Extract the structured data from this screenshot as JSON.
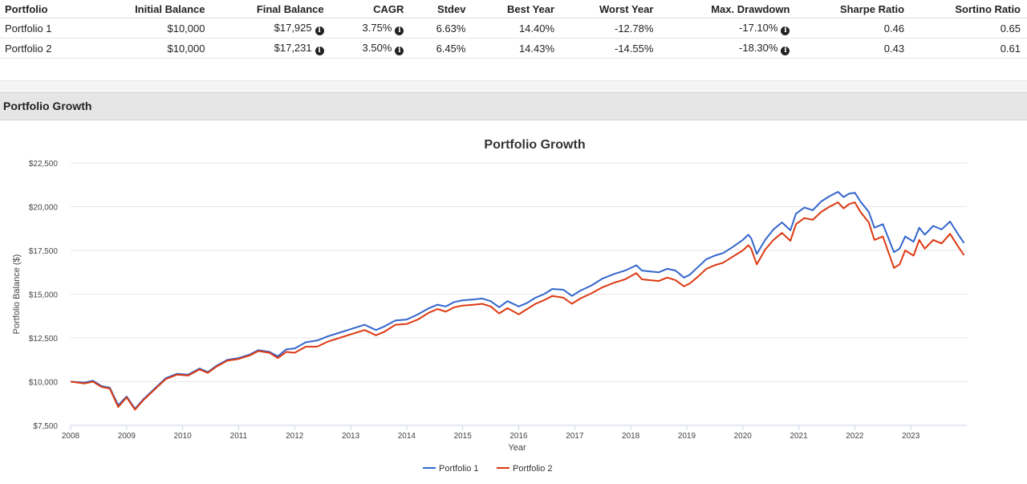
{
  "table": {
    "headers": [
      "Portfolio",
      "Initial Balance",
      "Final Balance",
      "CAGR",
      "Stdev",
      "Best Year",
      "Worst Year",
      "Max. Drawdown",
      "Sharpe Ratio",
      "Sortino Ratio"
    ],
    "rows": [
      [
        "Portfolio 1",
        "$10,000",
        "$17,925",
        "3.75%",
        "6.63%",
        "14.40%",
        "-12.78%",
        "-17.10%",
        "0.46",
        "0.65"
      ],
      [
        "Portfolio 2",
        "$10,000",
        "$17,231",
        "3.50%",
        "6.45%",
        "14.43%",
        "-14.55%",
        "-18.30%",
        "0.43",
        "0.61"
      ]
    ],
    "info_glyph": "i"
  },
  "section": {
    "title": "Portfolio Growth"
  },
  "chart_data": {
    "type": "line",
    "title": "Portfolio Growth",
    "xlabel": "Year",
    "ylabel": "Portfolio Balance ($)",
    "xlim": [
      2008,
      2024.0
    ],
    "ylim": [
      7500,
      22500
    ],
    "x_ticks": [
      2008,
      2009,
      2010,
      2011,
      2012,
      2013,
      2014,
      2015,
      2016,
      2017,
      2018,
      2019,
      2020,
      2021,
      2022,
      2023
    ],
    "y_ticks": [
      7500,
      10000,
      12500,
      15000,
      17500,
      20000,
      22500
    ],
    "y_tick_labels": [
      "$7,500",
      "$10,000",
      "$12,500",
      "$15,000",
      "$17,500",
      "$20,000",
      "$22,500"
    ],
    "grid": "horizontal",
    "legend": "bottom-center",
    "series": [
      {
        "name": "Portfolio 1",
        "color": "#3366cc",
        "points": [
          [
            2008.0,
            10000
          ],
          [
            2008.25,
            9950
          ],
          [
            2008.4,
            10050
          ],
          [
            2008.55,
            9750
          ],
          [
            2008.7,
            9650
          ],
          [
            2008.85,
            8650
          ],
          [
            2009.0,
            9150
          ],
          [
            2009.15,
            8450
          ],
          [
            2009.3,
            9000
          ],
          [
            2009.5,
            9600
          ],
          [
            2009.7,
            10200
          ],
          [
            2009.9,
            10450
          ],
          [
            2010.1,
            10400
          ],
          [
            2010.3,
            10750
          ],
          [
            2010.45,
            10550
          ],
          [
            2010.6,
            10900
          ],
          [
            2010.8,
            11250
          ],
          [
            2011.0,
            11350
          ],
          [
            2011.2,
            11550
          ],
          [
            2011.35,
            11800
          ],
          [
            2011.55,
            11700
          ],
          [
            2011.7,
            11450
          ],
          [
            2011.85,
            11850
          ],
          [
            2012.0,
            11900
          ],
          [
            2012.2,
            12250
          ],
          [
            2012.4,
            12350
          ],
          [
            2012.6,
            12600
          ],
          [
            2012.8,
            12800
          ],
          [
            2013.0,
            13000
          ],
          [
            2013.25,
            13250
          ],
          [
            2013.45,
            12950
          ],
          [
            2013.6,
            13150
          ],
          [
            2013.8,
            13500
          ],
          [
            2014.0,
            13550
          ],
          [
            2014.2,
            13850
          ],
          [
            2014.4,
            14200
          ],
          [
            2014.55,
            14400
          ],
          [
            2014.7,
            14300
          ],
          [
            2014.85,
            14550
          ],
          [
            2015.0,
            14650
          ],
          [
            2015.2,
            14700
          ],
          [
            2015.35,
            14750
          ],
          [
            2015.5,
            14600
          ],
          [
            2015.65,
            14250
          ],
          [
            2015.8,
            14600
          ],
          [
            2016.0,
            14300
          ],
          [
            2016.15,
            14500
          ],
          [
            2016.3,
            14800
          ],
          [
            2016.45,
            15000
          ],
          [
            2016.6,
            15300
          ],
          [
            2016.8,
            15250
          ],
          [
            2016.95,
            14900
          ],
          [
            2017.1,
            15200
          ],
          [
            2017.3,
            15500
          ],
          [
            2017.5,
            15900
          ],
          [
            2017.7,
            16150
          ],
          [
            2017.9,
            16350
          ],
          [
            2018.1,
            16650
          ],
          [
            2018.2,
            16350
          ],
          [
            2018.35,
            16300
          ],
          [
            2018.5,
            16250
          ],
          [
            2018.65,
            16450
          ],
          [
            2018.8,
            16350
          ],
          [
            2018.95,
            15950
          ],
          [
            2019.05,
            16100
          ],
          [
            2019.2,
            16550
          ],
          [
            2019.35,
            17000
          ],
          [
            2019.5,
            17200
          ],
          [
            2019.65,
            17350
          ],
          [
            2019.8,
            17650
          ],
          [
            2020.0,
            18100
          ],
          [
            2020.1,
            18400
          ],
          [
            2020.15,
            18200
          ],
          [
            2020.25,
            17300
          ],
          [
            2020.4,
            18100
          ],
          [
            2020.55,
            18700
          ],
          [
            2020.7,
            19100
          ],
          [
            2020.85,
            18650
          ],
          [
            2020.95,
            19600
          ],
          [
            2021.1,
            19950
          ],
          [
            2021.25,
            19800
          ],
          [
            2021.4,
            20300
          ],
          [
            2021.55,
            20600
          ],
          [
            2021.7,
            20850
          ],
          [
            2021.8,
            20550
          ],
          [
            2021.9,
            20750
          ],
          [
            2022.0,
            20800
          ],
          [
            2022.1,
            20300
          ],
          [
            2022.25,
            19700
          ],
          [
            2022.35,
            18800
          ],
          [
            2022.5,
            19000
          ],
          [
            2022.6,
            18200
          ],
          [
            2022.7,
            17400
          ],
          [
            2022.8,
            17600
          ],
          [
            2022.9,
            18300
          ],
          [
            2023.05,
            18000
          ],
          [
            2023.15,
            18800
          ],
          [
            2023.25,
            18400
          ],
          [
            2023.4,
            18900
          ],
          [
            2023.55,
            18700
          ],
          [
            2023.7,
            19150
          ],
          [
            2023.85,
            18400
          ],
          [
            2023.95,
            17925
          ]
        ]
      },
      {
        "name": "Portfolio 2",
        "color": "#dc3912",
        "points": [
          [
            2008.0,
            10000
          ],
          [
            2008.25,
            9900
          ],
          [
            2008.4,
            10000
          ],
          [
            2008.55,
            9700
          ],
          [
            2008.7,
            9600
          ],
          [
            2008.85,
            8550
          ],
          [
            2009.0,
            9100
          ],
          [
            2009.15,
            8400
          ],
          [
            2009.3,
            8950
          ],
          [
            2009.5,
            9550
          ],
          [
            2009.7,
            10150
          ],
          [
            2009.9,
            10400
          ],
          [
            2010.1,
            10350
          ],
          [
            2010.3,
            10700
          ],
          [
            2010.45,
            10500
          ],
          [
            2010.6,
            10850
          ],
          [
            2010.8,
            11200
          ],
          [
            2011.0,
            11300
          ],
          [
            2011.2,
            11500
          ],
          [
            2011.35,
            11750
          ],
          [
            2011.55,
            11650
          ],
          [
            2011.7,
            11350
          ],
          [
            2011.85,
            11700
          ],
          [
            2012.0,
            11650
          ],
          [
            2012.2,
            12000
          ],
          [
            2012.4,
            12000
          ],
          [
            2012.6,
            12300
          ],
          [
            2012.8,
            12500
          ],
          [
            2013.0,
            12700
          ],
          [
            2013.25,
            12950
          ],
          [
            2013.45,
            12650
          ],
          [
            2013.6,
            12850
          ],
          [
            2013.8,
            13250
          ],
          [
            2014.0,
            13300
          ],
          [
            2014.2,
            13550
          ],
          [
            2014.4,
            13950
          ],
          [
            2014.55,
            14150
          ],
          [
            2014.7,
            14000
          ],
          [
            2014.85,
            14250
          ],
          [
            2015.0,
            14350
          ],
          [
            2015.2,
            14400
          ],
          [
            2015.35,
            14450
          ],
          [
            2015.5,
            14300
          ],
          [
            2015.65,
            13900
          ],
          [
            2015.8,
            14200
          ],
          [
            2016.0,
            13850
          ],
          [
            2016.15,
            14150
          ],
          [
            2016.3,
            14450
          ],
          [
            2016.45,
            14650
          ],
          [
            2016.6,
            14900
          ],
          [
            2016.8,
            14800
          ],
          [
            2016.95,
            14450
          ],
          [
            2017.1,
            14750
          ],
          [
            2017.3,
            15050
          ],
          [
            2017.5,
            15400
          ],
          [
            2017.7,
            15650
          ],
          [
            2017.9,
            15850
          ],
          [
            2018.1,
            16200
          ],
          [
            2018.2,
            15850
          ],
          [
            2018.35,
            15800
          ],
          [
            2018.5,
            15750
          ],
          [
            2018.65,
            15950
          ],
          [
            2018.8,
            15800
          ],
          [
            2018.95,
            15450
          ],
          [
            2019.05,
            15600
          ],
          [
            2019.2,
            16000
          ],
          [
            2019.35,
            16450
          ],
          [
            2019.5,
            16650
          ],
          [
            2019.65,
            16800
          ],
          [
            2019.8,
            17100
          ],
          [
            2020.0,
            17500
          ],
          [
            2020.1,
            17800
          ],
          [
            2020.15,
            17600
          ],
          [
            2020.25,
            16700
          ],
          [
            2020.4,
            17550
          ],
          [
            2020.55,
            18100
          ],
          [
            2020.7,
            18500
          ],
          [
            2020.85,
            18050
          ],
          [
            2020.95,
            19000
          ],
          [
            2021.1,
            19350
          ],
          [
            2021.25,
            19250
          ],
          [
            2021.4,
            19700
          ],
          [
            2021.55,
            20000
          ],
          [
            2021.7,
            20250
          ],
          [
            2021.8,
            19900
          ],
          [
            2021.9,
            20150
          ],
          [
            2022.0,
            20250
          ],
          [
            2022.1,
            19700
          ],
          [
            2022.25,
            19100
          ],
          [
            2022.35,
            18100
          ],
          [
            2022.5,
            18300
          ],
          [
            2022.6,
            17400
          ],
          [
            2022.7,
            16500
          ],
          [
            2022.8,
            16700
          ],
          [
            2022.9,
            17500
          ],
          [
            2023.05,
            17200
          ],
          [
            2023.15,
            18100
          ],
          [
            2023.25,
            17600
          ],
          [
            2023.4,
            18100
          ],
          [
            2023.55,
            17900
          ],
          [
            2023.7,
            18450
          ],
          [
            2023.85,
            17700
          ],
          [
            2023.95,
            17231
          ]
        ]
      }
    ]
  }
}
